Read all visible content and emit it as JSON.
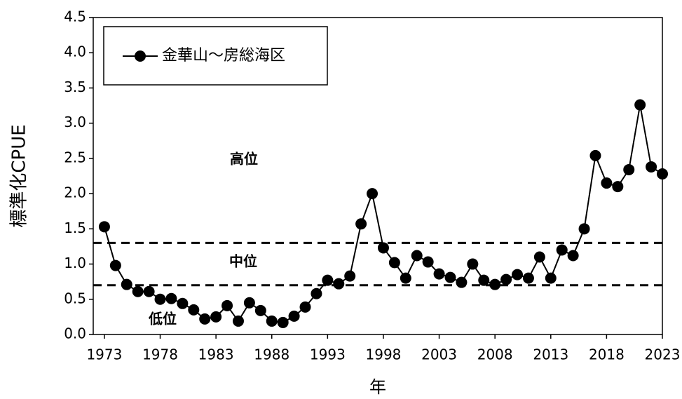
{
  "chart_data": {
    "type": "line",
    "x": [
      1973,
      1974,
      1975,
      1976,
      1977,
      1978,
      1979,
      1980,
      1981,
      1982,
      1983,
      1984,
      1985,
      1986,
      1987,
      1988,
      1989,
      1990,
      1991,
      1992,
      1993,
      1994,
      1995,
      1996,
      1997,
      1998,
      1999,
      2000,
      2001,
      2002,
      2003,
      2004,
      2005,
      2006,
      2007,
      2008,
      2009,
      2010,
      2011,
      2012,
      2013,
      2014,
      2015,
      2016,
      2017,
      2018,
      2019,
      2020,
      2021,
      2022,
      2023
    ],
    "series": [
      {
        "name": "金華山～房総海区",
        "color": "#000000",
        "values": [
          1.53,
          0.98,
          0.71,
          0.61,
          0.61,
          0.5,
          0.51,
          0.44,
          0.35,
          0.22,
          0.25,
          0.41,
          0.19,
          0.45,
          0.34,
          0.19,
          0.17,
          0.26,
          0.39,
          0.58,
          0.77,
          0.72,
          0.83,
          1.57,
          2.0,
          1.23,
          1.02,
          0.8,
          1.12,
          1.03,
          0.86,
          0.81,
          0.74,
          1.0,
          0.77,
          0.71,
          0.78,
          0.85,
          0.8,
          1.1,
          0.8,
          1.2,
          1.12,
          1.5,
          2.54,
          2.15,
          2.1,
          2.34,
          3.26,
          2.38,
          2.28
        ]
      }
    ],
    "xlabel": "年",
    "ylabel": "標準化CPUE",
    "xlim": [
      1972,
      2023
    ],
    "ylim": [
      0,
      4.5
    ],
    "xticks": [
      1973,
      1978,
      1983,
      1988,
      1993,
      1998,
      2003,
      2008,
      2013,
      2018,
      2023
    ],
    "yticks": [
      {
        "value": 0,
        "label": "0.0"
      },
      0.5,
      {
        "value": 1,
        "label": "1.0"
      },
      1.5,
      {
        "value": 2,
        "label": "2.0"
      },
      2.5,
      {
        "value": 3,
        "label": "3.0"
      },
      3.5,
      {
        "value": 4,
        "label": "4.0"
      },
      4.5
    ],
    "reference_lines": [
      1.3,
      0.7
    ],
    "annotations": [
      "高位",
      "中位",
      "低位"
    ],
    "legend": "upper left"
  }
}
